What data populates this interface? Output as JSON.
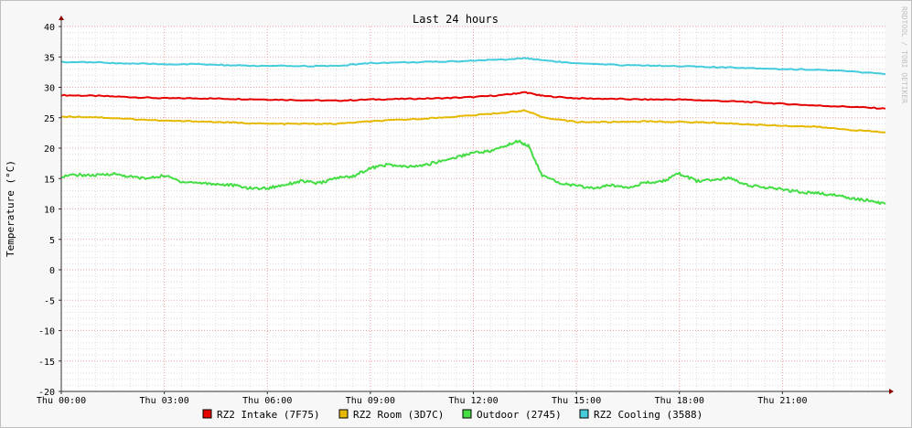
{
  "watermark": "RRDTOOL / TOBI OETIKER",
  "chart_data": {
    "type": "line",
    "title": "Last 24 hours",
    "ylabel": "Temperature (°C)",
    "xlabel": "",
    "ylim": [
      -20,
      40
    ],
    "yticks": [
      40,
      35,
      30,
      25,
      20,
      15,
      10,
      5,
      0,
      -5,
      -10,
      -15,
      -20
    ],
    "xlim": [
      0,
      24
    ],
    "xticks": [
      {
        "x": 0,
        "label": "Thu 00:00"
      },
      {
        "x": 3,
        "label": "Thu 03:00"
      },
      {
        "x": 6,
        "label": "Thu 06:00"
      },
      {
        "x": 9,
        "label": "Thu 09:00"
      },
      {
        "x": 12,
        "label": "Thu 12:00"
      },
      {
        "x": 15,
        "label": "Thu 15:00"
      },
      {
        "x": 18,
        "label": "Thu 18:00"
      },
      {
        "x": 21,
        "label": "Thu 21:00"
      }
    ],
    "grid": true,
    "legend_position": "bottom",
    "series": [
      {
        "name": "RZ2 Intake (7F75)",
        "color": "#e60000",
        "x": [
          0,
          1,
          2,
          3,
          4,
          5,
          6,
          7,
          8,
          9,
          10,
          11,
          12,
          13,
          13.5,
          14,
          15,
          16,
          17,
          18,
          19,
          20,
          21,
          22,
          23,
          24
        ],
        "y": [
          28.7,
          28.6,
          28.4,
          28.2,
          28.2,
          28.1,
          28.0,
          27.9,
          27.8,
          28.0,
          28.1,
          28.2,
          28.4,
          28.8,
          29.2,
          28.6,
          28.2,
          28.1,
          28.0,
          28.0,
          27.8,
          27.6,
          27.3,
          27.0,
          26.8,
          26.5
        ]
      },
      {
        "name": "RZ2 Room (3D7C)",
        "color": "#e6b800",
        "x": [
          0,
          1,
          2,
          3,
          4,
          5,
          6,
          7,
          8,
          9,
          10,
          11,
          12,
          13,
          13.5,
          14,
          15,
          16,
          17,
          18,
          19,
          20,
          21,
          22,
          23,
          24
        ],
        "y": [
          25.2,
          25.1,
          24.8,
          24.5,
          24.4,
          24.2,
          24.0,
          24.0,
          24.0,
          24.4,
          24.7,
          25.0,
          25.4,
          25.9,
          26.2,
          25.1,
          24.3,
          24.3,
          24.4,
          24.3,
          24.2,
          23.9,
          23.7,
          23.5,
          23.0,
          22.6
        ]
      },
      {
        "name": "Outdoor (2745)",
        "color": "#44dd44",
        "x": [
          0,
          0.5,
          1,
          1.5,
          2,
          2.5,
          3,
          3.5,
          4,
          4.5,
          5,
          5.5,
          6,
          6.5,
          7,
          7.5,
          8,
          8.5,
          9,
          9.5,
          10,
          10.5,
          11,
          11.5,
          12,
          12.5,
          13,
          13.3,
          13.6,
          14,
          14.5,
          15,
          15.5,
          16,
          16.5,
          17,
          17.5,
          18,
          18.5,
          19,
          19.5,
          20,
          20.5,
          21,
          21.5,
          22,
          22.5,
          23,
          23.5,
          24
        ],
        "y": [
          15.4,
          15.6,
          15.5,
          15.8,
          15.3,
          15.0,
          15.5,
          14.5,
          14.3,
          14.1,
          13.9,
          13.4,
          13.4,
          14.0,
          14.6,
          14.2,
          15.1,
          15.4,
          16.7,
          17.3,
          16.9,
          17.1,
          17.8,
          18.5,
          19.3,
          19.5,
          20.5,
          21.2,
          20.4,
          15.5,
          14.3,
          13.8,
          13.4,
          13.9,
          13.6,
          14.3,
          14.5,
          15.8,
          14.6,
          14.8,
          15.1,
          13.9,
          13.5,
          13.2,
          12.8,
          12.6,
          12.3,
          11.8,
          11.4,
          10.8
        ]
      },
      {
        "name": "RZ2 Cooling (3588)",
        "color": "#44ccdd",
        "x": [
          0,
          1,
          2,
          3,
          4,
          5,
          6,
          7,
          8,
          9,
          10,
          11,
          12,
          13,
          13.5,
          14,
          15,
          16,
          17,
          18,
          19,
          20,
          21,
          22,
          23,
          24
        ],
        "y": [
          34.2,
          34.1,
          33.9,
          33.8,
          33.8,
          33.6,
          33.5,
          33.5,
          33.5,
          34.0,
          34.1,
          34.2,
          34.4,
          34.6,
          34.8,
          34.5,
          33.9,
          33.7,
          33.6,
          33.5,
          33.3,
          33.2,
          33.0,
          32.9,
          32.6,
          32.2
        ]
      }
    ]
  }
}
